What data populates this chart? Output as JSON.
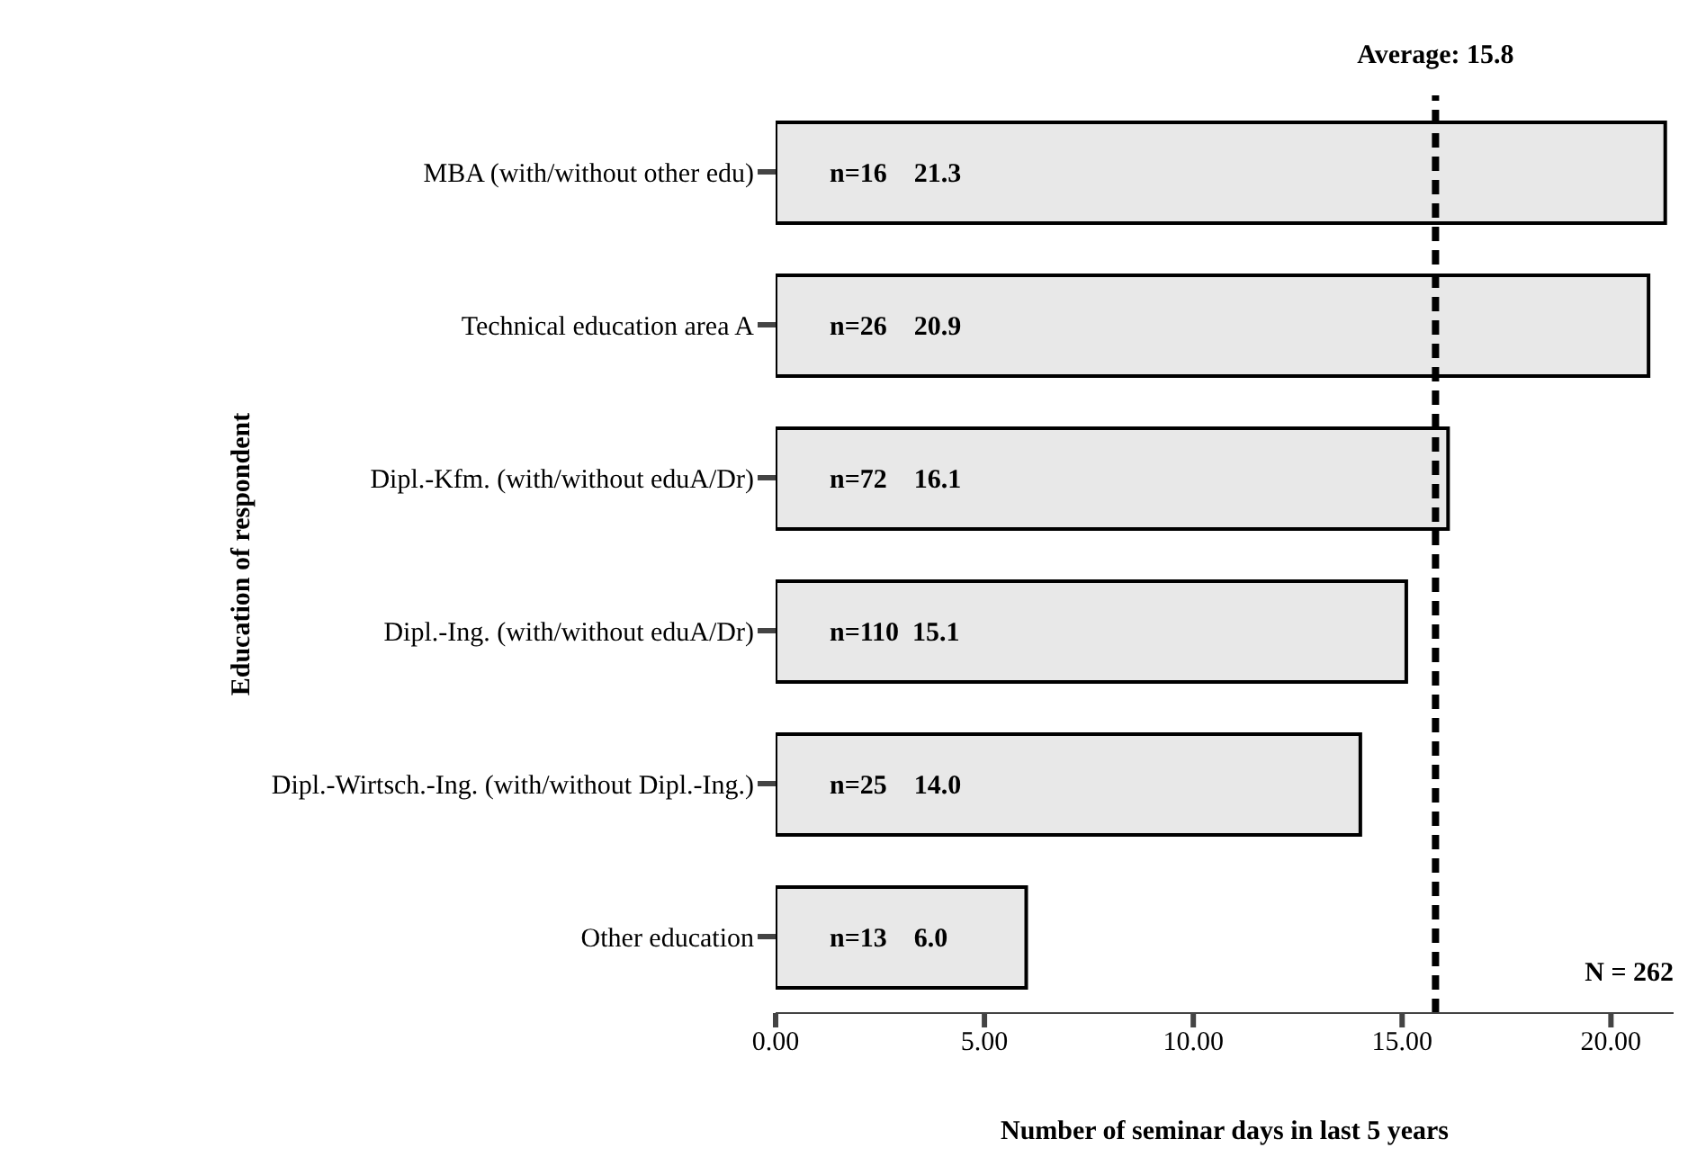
{
  "chart_data": {
    "type": "bar",
    "orientation": "horizontal",
    "xlabel": "Number of seminar days in last 5 years",
    "ylabel": "Education of respondent",
    "categories": [
      "MBA (with/without other edu)",
      "Technical education area A",
      "Dipl.-Kfm. (with/without eduA/Dr)",
      "Dipl.-Ing. (with/without eduA/Dr)",
      "Dipl.-Wirtsch.-Ing. (with/without Dipl.-Ing.)",
      "Other education"
    ],
    "values": [
      21.3,
      20.9,
      16.1,
      15.1,
      14.0,
      6.0
    ],
    "value_labels": [
      "n=16    21.3",
      "n=26    20.9",
      "n=72    16.1",
      "n=110  15.1",
      "n=25    14.0",
      "n=13    6.0"
    ],
    "color": "#e8e8e8",
    "xlim": [
      0,
      21.5
    ],
    "xticks": [
      {
        "value": 0,
        "label": "0.00"
      },
      {
        "value": 5,
        "label": "5.00"
      },
      {
        "value": 10,
        "label": "10.00"
      },
      {
        "value": 15,
        "label": "15.00"
      },
      {
        "value": 20,
        "label": "20.00"
      }
    ],
    "ref_lines": [
      {
        "axis": "x",
        "value": 15.8,
        "label": "Average: 15.8",
        "line_style": "dashed",
        "color": "#000000"
      }
    ],
    "annotations": [
      "N = 262"
    ],
    "grid": false,
    "legend": false
  }
}
